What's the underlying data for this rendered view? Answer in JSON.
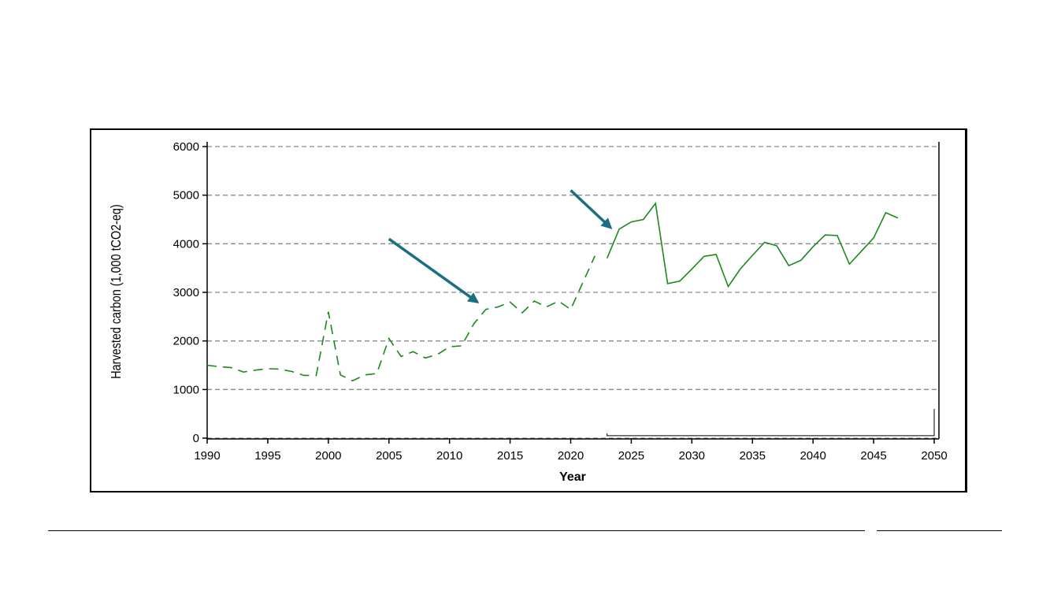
{
  "chart_data": {
    "type": "line",
    "xlabel": "Year",
    "ylabel": "Harvested carbon (1,000 tCO2-eq)",
    "xlim": [
      1990,
      2050
    ],
    "ylim": [
      0,
      6000
    ],
    "xticks": [
      1990,
      1995,
      2000,
      2005,
      2010,
      2015,
      2020,
      2025,
      2030,
      2035,
      2040,
      2045,
      2050
    ],
    "yticks": [
      0,
      1000,
      2000,
      3000,
      4000,
      5000,
      6000
    ],
    "grid": "horizontal dashed",
    "series": [
      {
        "style": "dashed",
        "color": "#1a8a1a",
        "x": [
          1990,
          1991,
          1992,
          1993,
          1994,
          1995,
          1996,
          1997,
          1998,
          1999,
          2000,
          2001,
          2002,
          2003,
          2004,
          2005,
          2006,
          2007,
          2008,
          2009,
          2010,
          2011,
          2012,
          2013,
          2014,
          2015,
          2016,
          2017,
          2018,
          2019,
          2020,
          2021,
          2022
        ],
        "y": [
          1500,
          1470,
          1450,
          1360,
          1400,
          1430,
          1420,
          1370,
          1290,
          1290,
          2600,
          1300,
          1180,
          1300,
          1330,
          2050,
          1680,
          1780,
          1650,
          1720,
          1880,
          1900,
          2350,
          2650,
          2700,
          2800,
          2580,
          2820,
          2700,
          2820,
          2650,
          3200,
          3750
        ]
      },
      {
        "style": "solid",
        "color": "#1a8a1a",
        "x": [
          2023,
          2024,
          2025,
          2026,
          2027,
          2028,
          2029,
          2030,
          2031,
          2032,
          2033,
          2034,
          2035,
          2036,
          2037,
          2038,
          2039,
          2040,
          2041,
          2042,
          2043,
          2044,
          2045,
          2046,
          2047
        ],
        "y": [
          3700,
          4300,
          4450,
          4500,
          4830,
          3180,
          3230,
          3480,
          3740,
          3780,
          3120,
          3480,
          3760,
          4030,
          3960,
          3550,
          3660,
          3940,
          4180,
          4170,
          3580,
          3850,
          4120,
          4640,
          4530
        ]
      },
      {
        "style": "solid",
        "color": "#000000",
        "x": [
          2023,
          2023,
          2050,
          2050
        ],
        "y": [
          100,
          50,
          50,
          600
        ]
      }
    ],
    "annotations": [
      {
        "type": "arrow",
        "color": "#1a7080",
        "from": [
          2005,
          4100
        ],
        "to": [
          2012.3,
          2800
        ]
      },
      {
        "type": "arrow",
        "color": "#1a7080",
        "from": [
          2020,
          5100
        ],
        "to": [
          2023.3,
          4330
        ]
      }
    ]
  }
}
